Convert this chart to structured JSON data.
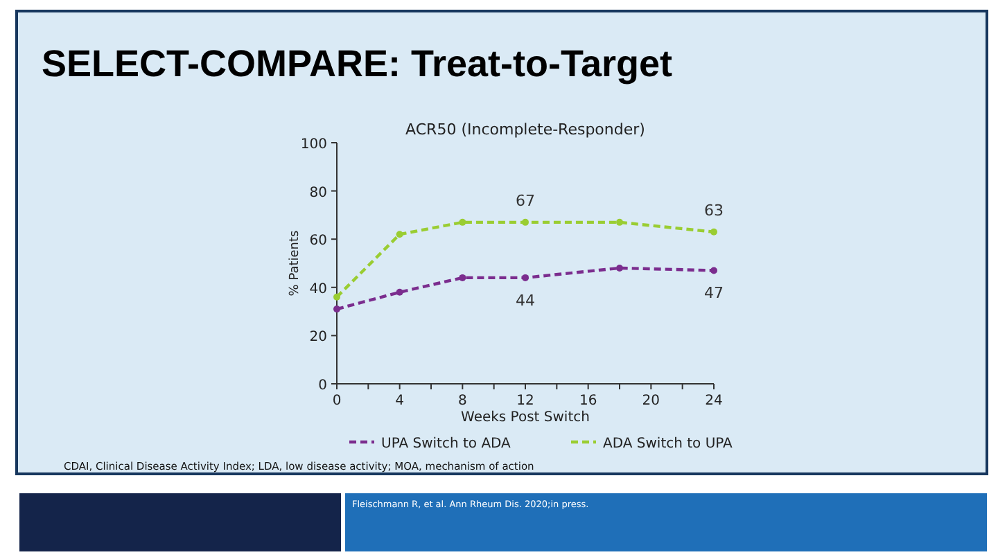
{
  "chart_data": {
    "type": "line",
    "title": "SELECT-COMPARE: Treat-to-Target",
    "subtitle": "ACR50 (Incomplete-Responder)",
    "xlabel": "Weeks Post Switch",
    "ylabel": "% Patients",
    "x": [
      0,
      4,
      8,
      12,
      18,
      24
    ],
    "series": [
      {
        "name": "UPA Switch to ADA",
        "color": "#7b2d8e",
        "values": [
          31,
          38,
          44,
          44,
          48,
          47
        ],
        "value_labels": [
          null,
          null,
          null,
          "44",
          null,
          "47"
        ]
      },
      {
        "name": "ADA Switch to UPA",
        "color": "#9acd32",
        "values": [
          36,
          62,
          67,
          67,
          67,
          63
        ],
        "value_labels": [
          null,
          null,
          null,
          "67",
          null,
          "63"
        ]
      }
    ],
    "xlim": [
      0,
      24
    ],
    "xticks": [
      0,
      {
        "value": 2,
        "label": null
      },
      4,
      {
        "value": 6,
        "label": null
      },
      8,
      {
        "value": 10,
        "label": null
      },
      12,
      {
        "value": 14,
        "label": null
      },
      16,
      {
        "value": 18,
        "label": null
      },
      20,
      {
        "value": 22,
        "label": null
      },
      24
    ],
    "ylim": [
      0,
      100
    ],
    "yticks": [
      0,
      20,
      40,
      60,
      80,
      100
    ],
    "grid": false,
    "legend": "bottom",
    "marker": "circle",
    "line_style": "dashed",
    "annotations": [
      "CDAI, Clinical Disease Activity Index; LDA, low disease activity; MOA, mechanism of action",
      "Fleischmann R, et al. Ann Rheum Dis. 2020;in press."
    ]
  }
}
